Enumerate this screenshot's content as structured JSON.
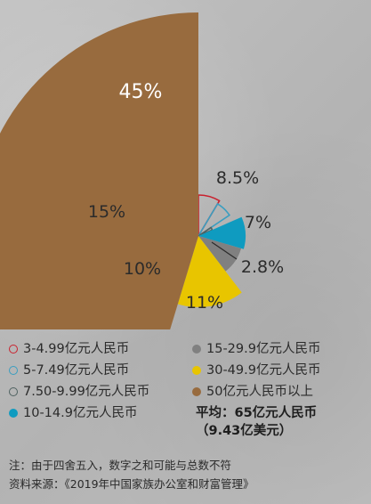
{
  "chart_data": {
    "type": "pie",
    "title": "",
    "slices": [
      {
        "label": "3-4.99亿元人民币",
        "value": 8.5,
        "value_label": "8.5%",
        "color": "#c9212e",
        "style": "outline"
      },
      {
        "label": "5-7.49亿元人民币",
        "value": 7,
        "value_label": "7%",
        "color": "#3a9ec0",
        "style": "outline"
      },
      {
        "label": "7.50-9.99亿元人民币",
        "value": 2.8,
        "value_label": "2.8%",
        "color": "#4f6160",
        "style": "outline"
      },
      {
        "label": "10-14.9亿元人民币",
        "value": 11,
        "value_label": "11%",
        "color": "#0f9bc0",
        "style": "filled"
      },
      {
        "label": "15-29.9亿元人民币",
        "value": 10,
        "value_label": "10%",
        "color": "#808080",
        "style": "filled"
      },
      {
        "label": "30-49.9亿元人民币",
        "value": 15,
        "value_label": "15%",
        "color": "#e8c500",
        "style": "filled"
      },
      {
        "label": "50亿元人民币以上",
        "value": 45,
        "value_label": "45%",
        "color": "#986b3e",
        "style": "filled"
      }
    ]
  },
  "legend": {
    "left": [
      0,
      1,
      2,
      3
    ],
    "right": [
      4,
      5,
      6
    ]
  },
  "summary": {
    "line1": "平均：65亿元人民币",
    "line2": "（9.43亿美元）"
  },
  "footnote": {
    "note": "注：由于四舍五入，数字之和可能与总数不符",
    "source": "资料来源：《2019年中国家族办公室和财富管理》"
  }
}
